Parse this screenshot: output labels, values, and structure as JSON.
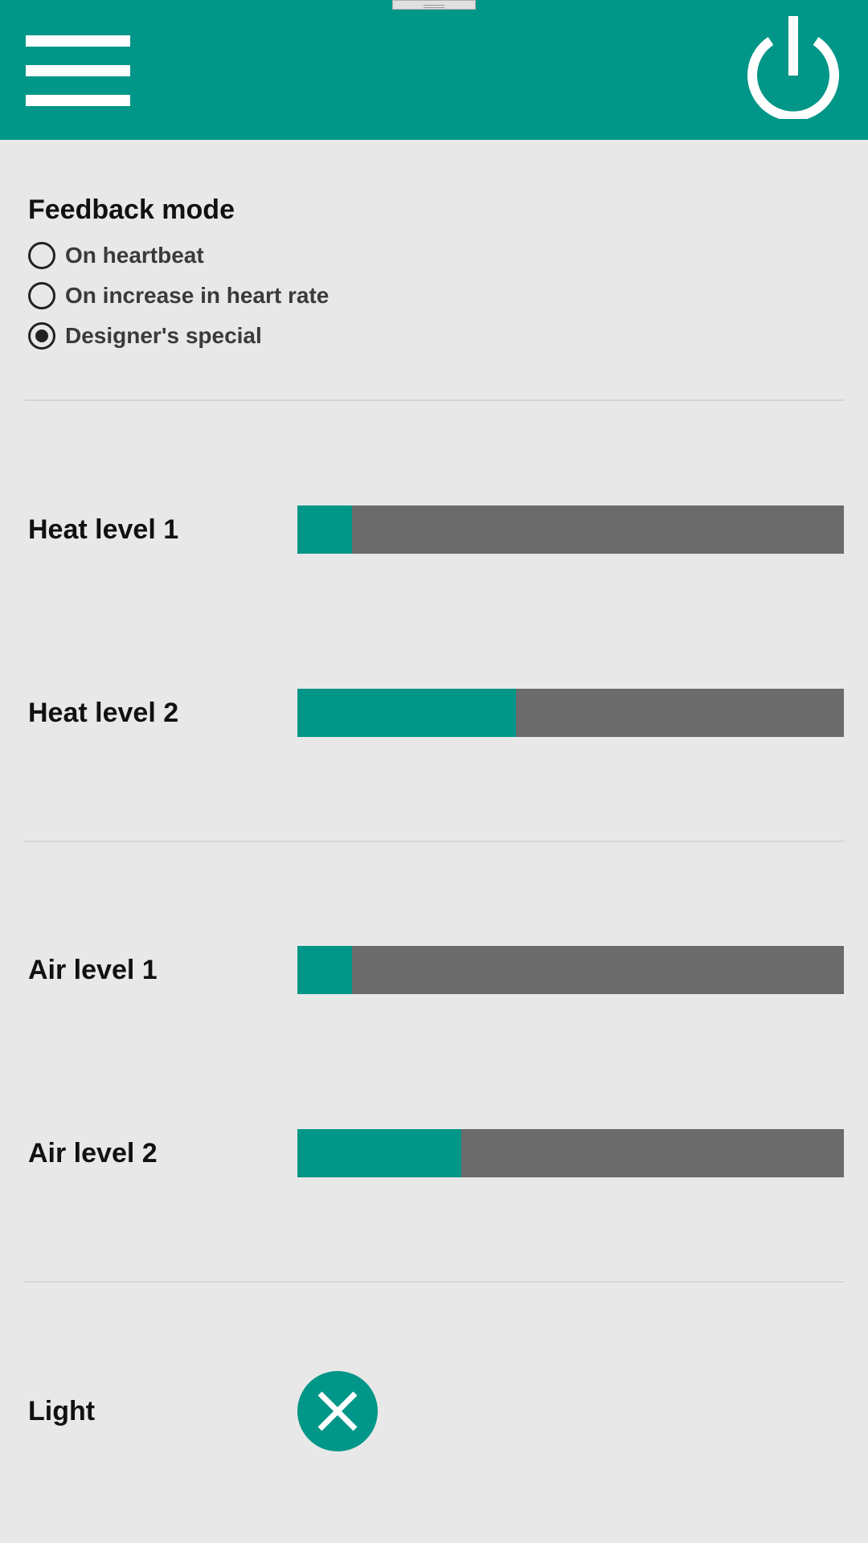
{
  "colors": {
    "accent": "#009688",
    "track": "#6b6b6b",
    "background": "#e8e8e8"
  },
  "header": {
    "menu_icon": "hamburger-menu-icon",
    "power_icon": "power-icon"
  },
  "feedback": {
    "title": "Feedback mode",
    "options": [
      {
        "label": "On heartbeat",
        "selected": false
      },
      {
        "label": "On increase in heart rate",
        "selected": false
      },
      {
        "label": "Designer's special",
        "selected": true
      }
    ]
  },
  "heat": {
    "level1": {
      "label": "Heat level 1",
      "value": 0.1
    },
    "level2": {
      "label": "Heat level 2",
      "value": 0.4
    }
  },
  "air": {
    "level1": {
      "label": "Air level 1",
      "value": 0.1
    },
    "level2": {
      "label": "Air level 2",
      "value": 0.3
    }
  },
  "light": {
    "label": "Light",
    "state": "off",
    "icon": "close-icon"
  }
}
